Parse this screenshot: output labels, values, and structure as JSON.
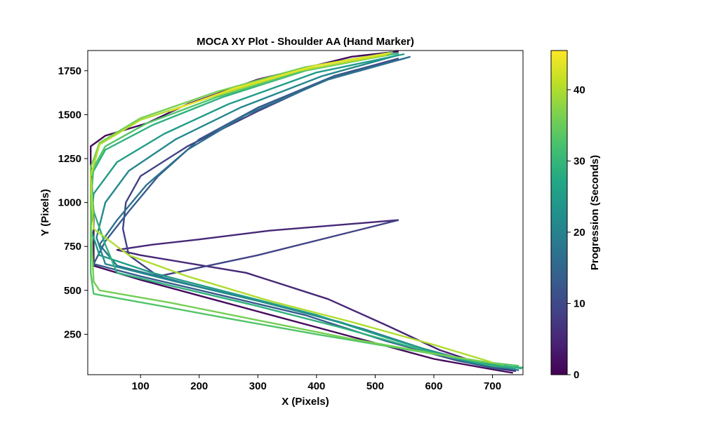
{
  "chart_data": {
    "type": "line",
    "title": "MOCA XY Plot - Shoulder AA (Hand Marker)",
    "xlabel": "X (Pixels)",
    "ylabel": "Y (Pixels)",
    "xlim": [
      10,
      752
    ],
    "ylim": [
      20,
      1865
    ],
    "x_ticks": [
      100,
      200,
      300,
      400,
      500,
      600,
      700
    ],
    "y_ticks": [
      250,
      500,
      750,
      1000,
      1250,
      1500,
      1750
    ],
    "colorbar": {
      "label": "Progression (Seconds)",
      "range": [
        0,
        45.5
      ],
      "ticks": [
        0,
        10,
        20,
        30,
        40
      ],
      "colormap": "viridis"
    },
    "grid": false,
    "series": [
      {
        "t": 1,
        "points": [
          [
            540,
            1860
          ],
          [
            460,
            1830
          ],
          [
            300,
            1700
          ],
          [
            180,
            1560
          ],
          [
            110,
            1450
          ],
          [
            40,
            1380
          ],
          [
            15,
            1320
          ],
          [
            15,
            1230
          ],
          [
            20,
            900
          ],
          [
            20,
            700
          ],
          [
            20,
            640
          ],
          [
            100,
            560
          ],
          [
            200,
            470
          ],
          [
            300,
            380
          ],
          [
            400,
            290
          ],
          [
            500,
            200
          ],
          [
            600,
            110
          ],
          [
            700,
            50
          ],
          [
            735,
            30
          ]
        ]
      },
      {
        "t": 5,
        "points": [
          [
            540,
            900
          ],
          [
            320,
            840
          ],
          [
            200,
            790
          ],
          [
            120,
            760
          ],
          [
            60,
            730
          ],
          [
            100,
            700
          ],
          [
            280,
            600
          ],
          [
            420,
            450
          ],
          [
            520,
            300
          ],
          [
            610,
            160
          ],
          [
            700,
            60
          ],
          [
            740,
            40
          ]
        ]
      },
      {
        "t": 9,
        "points": [
          [
            540,
            900
          ],
          [
            300,
            700
          ],
          [
            130,
            580
          ],
          [
            80,
            700
          ],
          [
            70,
            850
          ],
          [
            75,
            1000
          ],
          [
            100,
            1150
          ],
          [
            180,
            1320
          ],
          [
            300,
            1520
          ],
          [
            430,
            1720
          ],
          [
            540,
            1820
          ]
        ]
      },
      {
        "t": 13,
        "points": [
          [
            550,
            1820
          ],
          [
            430,
            1720
          ],
          [
            300,
            1540
          ],
          [
            200,
            1360
          ],
          [
            130,
            1150
          ],
          [
            80,
            950
          ],
          [
            40,
            780
          ],
          [
            20,
            650
          ],
          [
            100,
            580
          ],
          [
            240,
            470
          ],
          [
            380,
            360
          ],
          [
            520,
            210
          ],
          [
            640,
            100
          ],
          [
            720,
            45
          ]
        ]
      },
      {
        "t": 17,
        "points": [
          [
            560,
            1830
          ],
          [
            420,
            1700
          ],
          [
            280,
            1500
          ],
          [
            180,
            1300
          ],
          [
            110,
            1100
          ],
          [
            60,
            900
          ],
          [
            30,
            760
          ],
          [
            60,
            640
          ],
          [
            200,
            520
          ],
          [
            350,
            400
          ],
          [
            480,
            280
          ],
          [
            580,
            170
          ],
          [
            680,
            80
          ],
          [
            745,
            45
          ]
        ]
      },
      {
        "t": 21,
        "points": [
          [
            540,
            1840
          ],
          [
            410,
            1720
          ],
          [
            270,
            1540
          ],
          [
            160,
            1360
          ],
          [
            80,
            1180
          ],
          [
            40,
            1000
          ],
          [
            25,
            800
          ],
          [
            40,
            650
          ],
          [
            160,
            550
          ],
          [
            300,
            440
          ],
          [
            440,
            320
          ],
          [
            560,
            190
          ],
          [
            660,
            90
          ],
          [
            740,
            50
          ]
        ]
      },
      {
        "t": 25,
        "points": [
          [
            550,
            1845
          ],
          [
            400,
            1740
          ],
          [
            250,
            1560
          ],
          [
            140,
            1390
          ],
          [
            60,
            1230
          ],
          [
            20,
            1050
          ],
          [
            15,
            850
          ],
          [
            30,
            700
          ],
          [
            120,
            600
          ],
          [
            260,
            480
          ],
          [
            400,
            360
          ],
          [
            520,
            230
          ],
          [
            640,
            110
          ],
          [
            750,
            55
          ]
        ]
      },
      {
        "t": 29,
        "points": [
          [
            540,
            1850
          ],
          [
            390,
            1760
          ],
          [
            240,
            1600
          ],
          [
            120,
            1440
          ],
          [
            40,
            1300
          ],
          [
            15,
            1150
          ],
          [
            20,
            950
          ],
          [
            40,
            760
          ],
          [
            60,
            600
          ],
          [
            160,
            520
          ],
          [
            300,
            410
          ],
          [
            440,
            290
          ],
          [
            580,
            160
          ],
          [
            700,
            70
          ],
          [
            752,
            60
          ]
        ]
      },
      {
        "t": 33,
        "points": [
          [
            530,
            1845
          ],
          [
            380,
            1750
          ],
          [
            230,
            1600
          ],
          [
            110,
            1450
          ],
          [
            40,
            1320
          ],
          [
            20,
            1200
          ],
          [
            15,
            1000
          ],
          [
            15,
            600
          ],
          [
            20,
            480
          ],
          [
            120,
            420
          ],
          [
            250,
            340
          ],
          [
            400,
            250
          ],
          [
            560,
            160
          ],
          [
            680,
            95
          ],
          [
            745,
            70
          ]
        ]
      },
      {
        "t": 36,
        "points": [
          [
            530,
            1855
          ],
          [
            380,
            1770
          ],
          [
            230,
            1630
          ],
          [
            100,
            1480
          ],
          [
            30,
            1340
          ],
          [
            15,
            1200
          ],
          [
            15,
            900
          ],
          [
            20,
            550
          ],
          [
            30,
            500
          ],
          [
            150,
            430
          ],
          [
            300,
            330
          ],
          [
            450,
            230
          ],
          [
            600,
            140
          ],
          [
            720,
            75
          ]
        ]
      },
      {
        "t": 40,
        "points": [
          [
            520,
            1840
          ],
          [
            370,
            1750
          ],
          [
            220,
            1600
          ],
          [
            100,
            1470
          ],
          [
            30,
            1330
          ],
          [
            15,
            1150
          ],
          [
            20,
            850
          ],
          [
            80,
            700
          ],
          [
            180,
            580
          ],
          [
            320,
            440
          ],
          [
            460,
            320
          ],
          [
            600,
            190
          ],
          [
            700,
            90
          ]
        ]
      },
      {
        "t": 44,
        "points": [
          [
            525,
            1850
          ],
          [
            400,
            1780
          ],
          [
            260,
            1650
          ],
          [
            150,
            1520
          ]
        ]
      }
    ]
  }
}
